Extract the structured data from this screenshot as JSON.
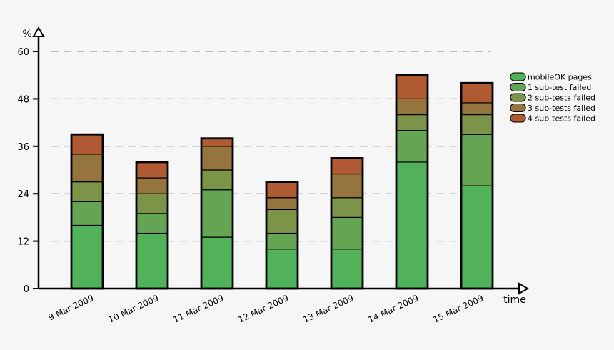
{
  "chart_data": {
    "type": "bar",
    "stacked": true,
    "categories": [
      "9 Mar 2009",
      "10 Mar 2009",
      "11 Mar 2009",
      "12 Mar 2009",
      "13 Mar 2009",
      "14 Mar 2009",
      "15 Mar 2009"
    ],
    "series": [
      {
        "name": "mobileOK pages",
        "color": "#52b25a",
        "values": [
          16,
          14,
          13,
          10,
          10,
          32,
          26
        ]
      },
      {
        "name": "1 sub-test failed",
        "color": "#65a452",
        "values": [
          6,
          5,
          12,
          4,
          8,
          8,
          13
        ]
      },
      {
        "name": "2 sub-tests failed",
        "color": "#7b9448",
        "values": [
          5,
          5,
          5,
          6,
          5,
          4,
          5
        ]
      },
      {
        "name": "3 sub-tests failed",
        "color": "#96743e",
        "values": [
          7,
          4,
          6,
          3,
          6,
          4,
          3
        ]
      },
      {
        "name": "4 sub-tests failed",
        "color": "#b05a33",
        "values": [
          5,
          4,
          2,
          4,
          4,
          6,
          5
        ]
      }
    ],
    "xlabel": "time",
    "ylabel": "%",
    "ylim": [
      0,
      60
    ],
    "yticks": [
      0,
      12,
      24,
      36,
      48,
      60
    ],
    "grid": true,
    "legend_position": "top-right"
  }
}
